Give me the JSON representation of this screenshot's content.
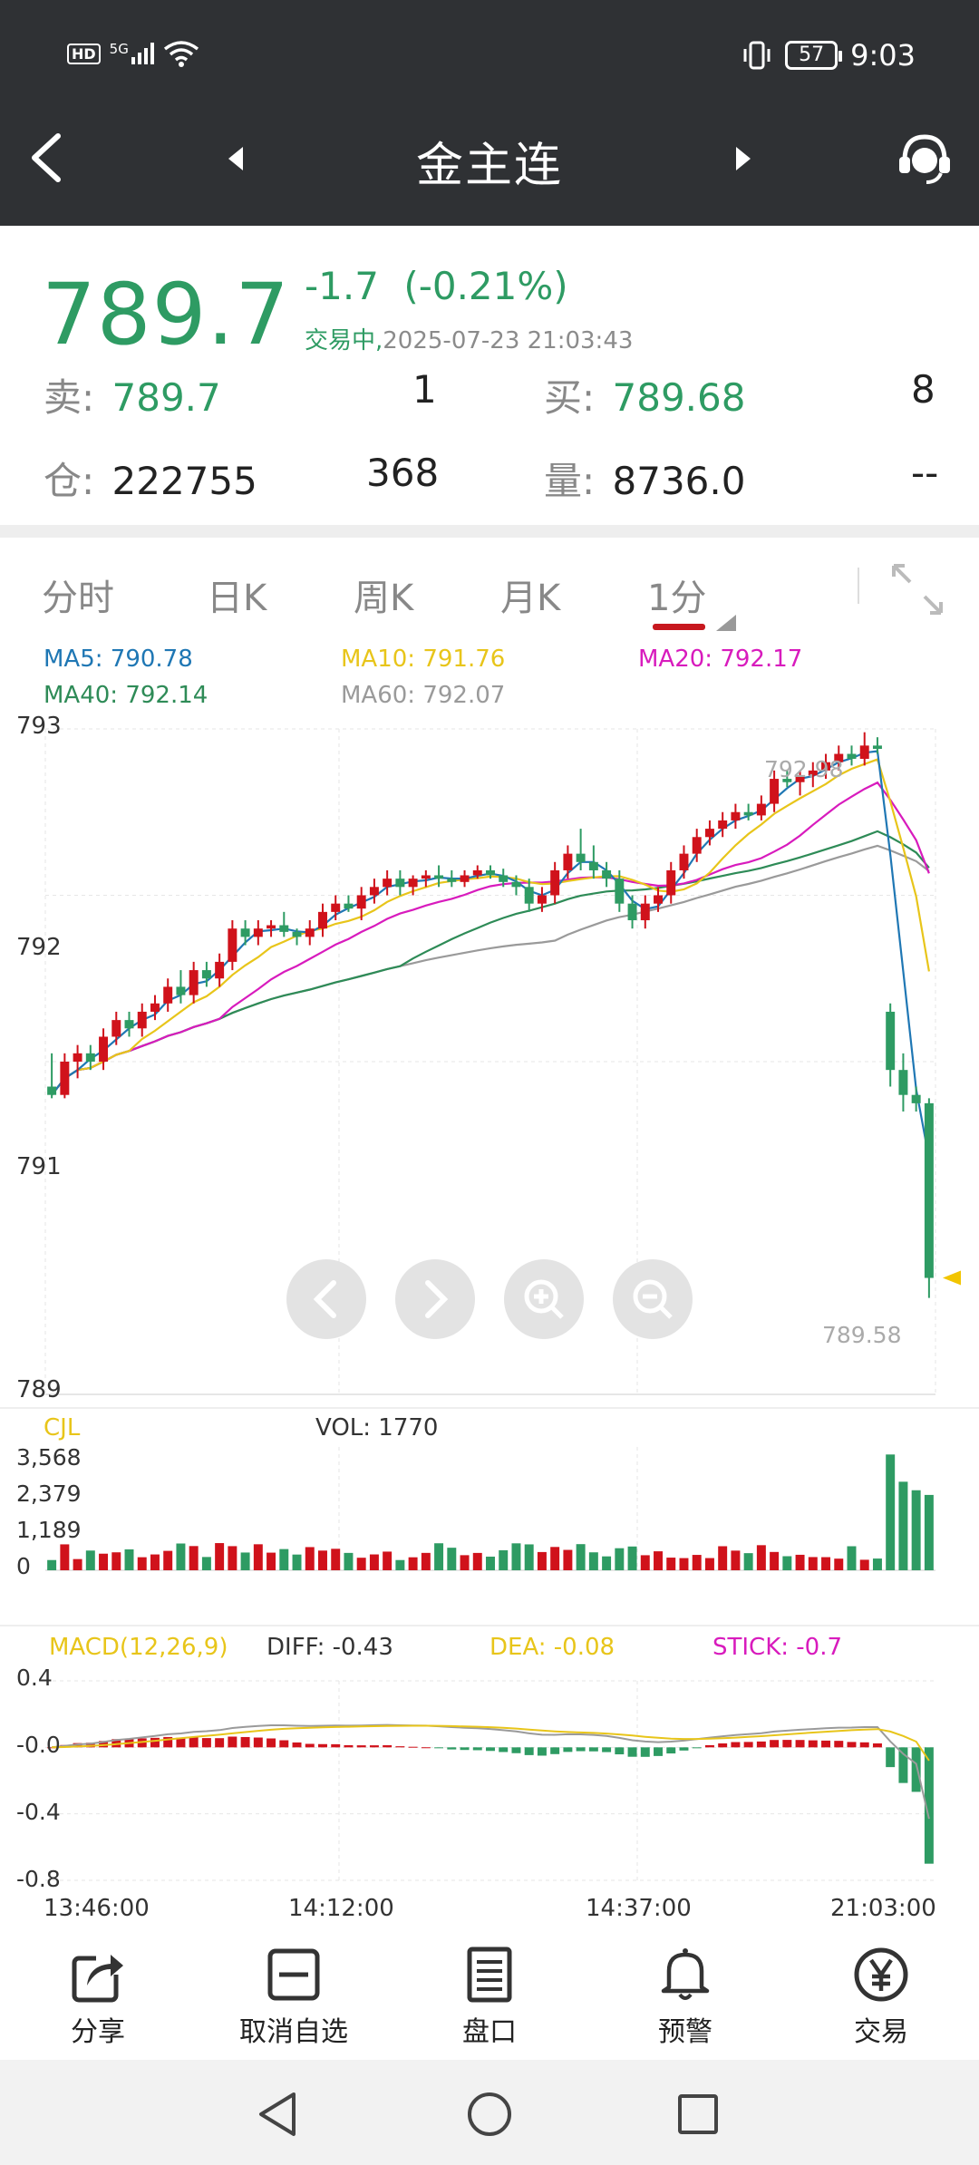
{
  "status_bar": {
    "left_icons": [
      "hd-icon",
      "5g-signal-icon",
      "wifi-icon"
    ],
    "hd_label": "HD",
    "net_label": "5G",
    "battery": "57",
    "time": "9:03"
  },
  "nav": {
    "title": "金主连"
  },
  "quote": {
    "price": "789.7",
    "change": "-1.7",
    "change_pct": "(-0.21%)",
    "state": "交易中,",
    "datetime": "2025-07-23 21:03:43",
    "sell_label": "卖:",
    "sell_price": "789.7",
    "sell_qty": "1",
    "buy_label": "买:",
    "buy_price": "789.68",
    "buy_qty": "8",
    "oi_label": "仓:",
    "oi_value": "222755",
    "oi_change": "368",
    "vol_label": "量:",
    "vol_value": "8736.0",
    "vol_extra": "--"
  },
  "tabs": [
    {
      "label": "分时"
    },
    {
      "label": "日K"
    },
    {
      "label": "周K"
    },
    {
      "label": "月K"
    },
    {
      "label": "1分"
    }
  ],
  "ma": {
    "ma5": "MA5: 790.78",
    "ma10": "MA10: 791.76",
    "ma20": "MA20: 792.17",
    "ma40": "MA40: 792.14",
    "ma60": "MA60: 792.07"
  },
  "colors": {
    "up": "#d0121b",
    "down": "#2e9b63",
    "ma5": "#1f77b4",
    "ma10": "#e8c51a",
    "ma20": "#d81bbd",
    "ma40": "#2e8b57",
    "ma60": "#9a9a9a"
  },
  "price_axis": {
    "y_labels": [
      "793",
      "792",
      "791",
      "789"
    ],
    "high_marker": "792.98",
    "low_marker": "789.58"
  },
  "volume": {
    "title": "CJL",
    "vol_label": "VOL: 1770",
    "y_labels": [
      "3,568",
      "2,379",
      "1,189",
      "0"
    ]
  },
  "macd": {
    "title": "MACD(12,26,9)",
    "diff": "DIFF: -0.43",
    "dea": "DEA: -0.08",
    "stick": "STICK: -0.7",
    "y_labels": [
      "0.4",
      "-0.0",
      "-0.4",
      "-0.8"
    ]
  },
  "time_axis": [
    "13:46:00",
    "14:12:00",
    "14:37:00",
    "21:03:00"
  ],
  "toolbar": [
    {
      "label": "分享",
      "icon": "share-icon"
    },
    {
      "label": "取消自选",
      "icon": "remove-favorite-icon"
    },
    {
      "label": "盘口",
      "icon": "orderbook-icon"
    },
    {
      "label": "预警",
      "icon": "bell-icon"
    },
    {
      "label": "交易",
      "icon": "yen-icon"
    }
  ],
  "chart_data": {
    "type": "candlestick",
    "title": "",
    "x": [
      "13:46:00",
      "14:12:00",
      "14:37:00",
      "21:03:00"
    ],
    "ylim": [
      789,
      793
    ],
    "bars": [
      {
        "o": 790.85,
        "h": 791.05,
        "l": 790.78,
        "c": 790.8
      },
      {
        "o": 790.8,
        "h": 791.05,
        "l": 790.78,
        "c": 791.0
      },
      {
        "o": 791.0,
        "h": 791.1,
        "l": 790.9,
        "c": 791.05
      },
      {
        "o": 791.05,
        "h": 791.1,
        "l": 790.95,
        "c": 791.0
      },
      {
        "o": 791.0,
        "h": 791.2,
        "l": 790.95,
        "c": 791.15
      },
      {
        "o": 791.15,
        "h": 791.3,
        "l": 791.1,
        "c": 791.25
      },
      {
        "o": 791.25,
        "h": 791.3,
        "l": 791.15,
        "c": 791.2
      },
      {
        "o": 791.2,
        "h": 791.35,
        "l": 791.15,
        "c": 791.3
      },
      {
        "o": 791.3,
        "h": 791.4,
        "l": 791.25,
        "c": 791.35
      },
      {
        "o": 791.35,
        "h": 791.5,
        "l": 791.3,
        "c": 791.45
      },
      {
        "o": 791.45,
        "h": 791.55,
        "l": 791.35,
        "c": 791.4
      },
      {
        "o": 791.4,
        "h": 791.6,
        "l": 791.35,
        "c": 791.55
      },
      {
        "o": 791.55,
        "h": 791.6,
        "l": 791.45,
        "c": 791.5
      },
      {
        "o": 791.5,
        "h": 791.65,
        "l": 791.45,
        "c": 791.6
      },
      {
        "o": 791.6,
        "h": 791.85,
        "l": 791.55,
        "c": 791.8
      },
      {
        "o": 791.8,
        "h": 791.85,
        "l": 791.7,
        "c": 791.75
      },
      {
        "o": 791.75,
        "h": 791.85,
        "l": 791.7,
        "c": 791.8
      },
      {
        "o": 791.8,
        "h": 791.85,
        "l": 791.75,
        "c": 791.82
      },
      {
        "o": 791.82,
        "h": 791.9,
        "l": 791.75,
        "c": 791.78
      },
      {
        "o": 791.78,
        "h": 791.8,
        "l": 791.7,
        "c": 791.75
      },
      {
        "o": 791.75,
        "h": 791.85,
        "l": 791.7,
        "c": 791.8
      },
      {
        "o": 791.8,
        "h": 791.95,
        "l": 791.75,
        "c": 791.9
      },
      {
        "o": 791.9,
        "h": 792.0,
        "l": 791.85,
        "c": 791.95
      },
      {
        "o": 791.95,
        "h": 792.0,
        "l": 791.9,
        "c": 791.92
      },
      {
        "o": 791.92,
        "h": 792.05,
        "l": 791.85,
        "c": 792.0
      },
      {
        "o": 792.0,
        "h": 792.1,
        "l": 791.95,
        "c": 792.05
      },
      {
        "o": 792.05,
        "h": 792.15,
        "l": 792.0,
        "c": 792.1
      },
      {
        "o": 792.1,
        "h": 792.15,
        "l": 792.0,
        "c": 792.05
      },
      {
        "o": 792.05,
        "h": 792.12,
        "l": 792.0,
        "c": 792.1
      },
      {
        "o": 792.1,
        "h": 792.15,
        "l": 792.05,
        "c": 792.12
      },
      {
        "o": 792.12,
        "h": 792.18,
        "l": 792.05,
        "c": 792.1
      },
      {
        "o": 792.1,
        "h": 792.15,
        "l": 792.05,
        "c": 792.08
      },
      {
        "o": 792.08,
        "h": 792.15,
        "l": 792.05,
        "c": 792.12
      },
      {
        "o": 792.12,
        "h": 792.18,
        "l": 792.1,
        "c": 792.15
      },
      {
        "o": 792.15,
        "h": 792.18,
        "l": 792.1,
        "c": 792.12
      },
      {
        "o": 792.12,
        "h": 792.16,
        "l": 792.05,
        "c": 792.08
      },
      {
        "o": 792.08,
        "h": 792.12,
        "l": 792.0,
        "c": 792.05
      },
      {
        "o": 792.05,
        "h": 792.1,
        "l": 791.9,
        "c": 791.95
      },
      {
        "o": 791.95,
        "h": 792.05,
        "l": 791.9,
        "c": 792.0
      },
      {
        "o": 792.0,
        "h": 792.2,
        "l": 791.95,
        "c": 792.15
      },
      {
        "o": 792.15,
        "h": 792.3,
        "l": 792.1,
        "c": 792.25
      },
      {
        "o": 792.25,
        "h": 792.4,
        "l": 792.15,
        "c": 792.2
      },
      {
        "o": 792.2,
        "h": 792.3,
        "l": 792.1,
        "c": 792.15
      },
      {
        "o": 792.15,
        "h": 792.2,
        "l": 792.05,
        "c": 792.1
      },
      {
        "o": 792.1,
        "h": 792.15,
        "l": 791.9,
        "c": 791.95
      },
      {
        "o": 791.95,
        "h": 792.0,
        "l": 791.8,
        "c": 791.85
      },
      {
        "o": 791.85,
        "h": 792.0,
        "l": 791.8,
        "c": 791.95
      },
      {
        "o": 791.95,
        "h": 792.05,
        "l": 791.9,
        "c": 792.0
      },
      {
        "o": 792.0,
        "h": 792.2,
        "l": 791.95,
        "c": 792.15
      },
      {
        "o": 792.15,
        "h": 792.3,
        "l": 792.1,
        "c": 792.25
      },
      {
        "o": 792.25,
        "h": 792.4,
        "l": 792.2,
        "c": 792.35
      },
      {
        "o": 792.35,
        "h": 792.45,
        "l": 792.3,
        "c": 792.4
      },
      {
        "o": 792.4,
        "h": 792.5,
        "l": 792.35,
        "c": 792.45
      },
      {
        "o": 792.45,
        "h": 792.55,
        "l": 792.4,
        "c": 792.5
      },
      {
        "o": 792.5,
        "h": 792.55,
        "l": 792.45,
        "c": 792.48
      },
      {
        "o": 792.48,
        "h": 792.6,
        "l": 792.45,
        "c": 792.55
      },
      {
        "o": 792.55,
        "h": 792.75,
        "l": 792.5,
        "c": 792.7
      },
      {
        "o": 792.7,
        "h": 792.75,
        "l": 792.65,
        "c": 792.68
      },
      {
        "o": 792.68,
        "h": 792.75,
        "l": 792.6,
        "c": 792.72
      },
      {
        "o": 792.72,
        "h": 792.8,
        "l": 792.65,
        "c": 792.75
      },
      {
        "o": 792.75,
        "h": 792.85,
        "l": 792.7,
        "c": 792.8
      },
      {
        "o": 792.8,
        "h": 792.9,
        "l": 792.75,
        "c": 792.85
      },
      {
        "o": 792.85,
        "h": 792.9,
        "l": 792.78,
        "c": 792.82
      },
      {
        "o": 792.82,
        "h": 792.98,
        "l": 792.78,
        "c": 792.9
      },
      {
        "o": 792.9,
        "h": 792.95,
        "l": 792.85,
        "c": 792.88
      },
      {
        "o": 791.3,
        "h": 791.35,
        "l": 790.85,
        "c": 790.95
      },
      {
        "o": 790.95,
        "h": 791.05,
        "l": 790.7,
        "c": 790.8
      },
      {
        "o": 790.8,
        "h": 790.85,
        "l": 790.7,
        "c": 790.75
      },
      {
        "o": 790.75,
        "h": 790.78,
        "l": 789.58,
        "c": 789.7
      }
    ],
    "volume_ylim": [
      0,
      3568
    ],
    "volume_last": 1770,
    "macd_ylim": [
      -0.8,
      0.4
    ],
    "macd_last": {
      "diff": -0.43,
      "dea": -0.08,
      "stick": -0.7
    }
  }
}
